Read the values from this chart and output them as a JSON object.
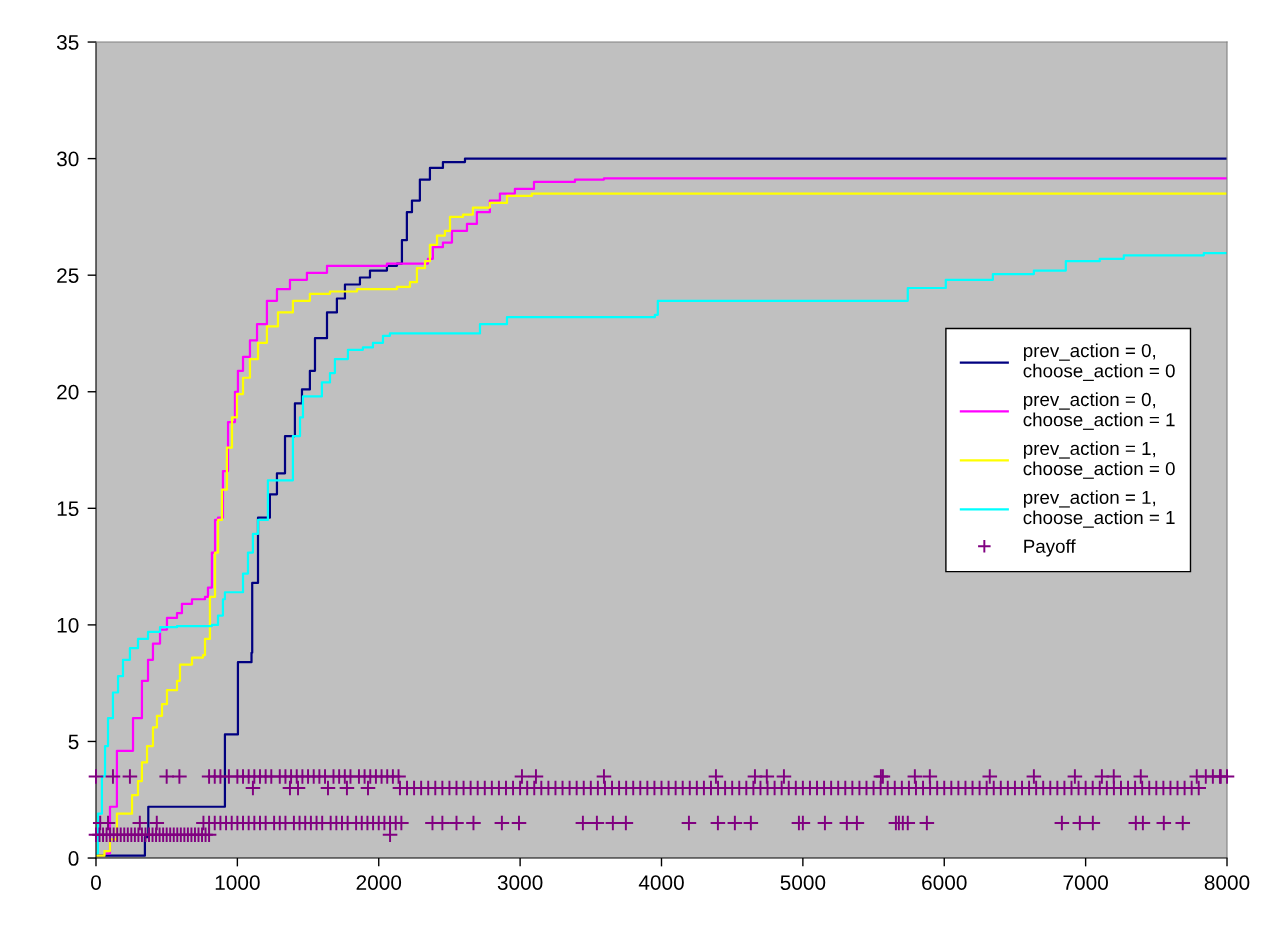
{
  "chart_data": {
    "type": "step",
    "xlim": [
      0,
      8000
    ],
    "ylim": [
      0,
      35
    ],
    "xticks": [
      0,
      1000,
      2000,
      3000,
      4000,
      5000,
      6000,
      7000,
      8000
    ],
    "yticks": [
      0,
      5,
      10,
      15,
      20,
      25,
      30,
      35
    ],
    "grid": false,
    "legend": "right",
    "marker": "none",
    "line_style": "solid",
    "series": [
      {
        "name": "prev_action = 0,\nchoose_action = 0",
        "color": "#000080",
        "x": [
          0,
          346,
          370,
          460,
          912,
          934,
          1004,
          1100,
          1105,
          1146,
          1230,
          1280,
          1337,
          1407,
          1457,
          1513,
          1549,
          1634,
          1704,
          1761,
          1867,
          1938,
          2058,
          2129,
          2164,
          2199,
          2235,
          2291,
          2362,
          2454,
          2610,
          8000
        ],
        "values": [
          0.1,
          0.9,
          2.2,
          2.2,
          5.3,
          5.3,
          8.4,
          8.8,
          11.8,
          14.6,
          15.6,
          16.5,
          18.1,
          19.5,
          20.1,
          20.9,
          22.3,
          23.4,
          24.0,
          24.6,
          24.9,
          25.2,
          25.4,
          25.5,
          26.5,
          27.7,
          28.2,
          29.1,
          29.6,
          29.85,
          30.0,
          30.0
        ]
      },
      {
        "name": "prev_action = 0,\nchoose_action = 1",
        "color": "#ff00ff",
        "x": [
          64,
          99,
          148,
          262,
          325,
          368,
          403,
          453,
          502,
          573,
          608,
          679,
          771,
          792,
          820,
          842,
          863,
          898,
          934,
          983,
          1004,
          1040,
          1089,
          1139,
          1209,
          1280,
          1372,
          1492,
          1634,
          1846,
          2058,
          2348,
          2383,
          2454,
          2518,
          2624,
          2694,
          2786,
          2857,
          2963,
          3098,
          3388,
          3593,
          8000
        ],
        "values": [
          0.2,
          2.2,
          4.6,
          6.0,
          7.6,
          8.5,
          9.2,
          9.8,
          10.3,
          10.5,
          10.9,
          11.1,
          11.2,
          11.6,
          13.1,
          14.5,
          14.6,
          16.6,
          18.7,
          20.0,
          20.9,
          21.5,
          22.2,
          22.9,
          23.9,
          24.4,
          24.8,
          25.1,
          25.4,
          25.4,
          25.5,
          25.7,
          26.2,
          26.4,
          26.9,
          27.2,
          27.7,
          28.2,
          28.5,
          28.7,
          29.0,
          29.1,
          29.15,
          29.15
        ]
      },
      {
        "name": "prev_action = 1,\nchoose_action = 0",
        "color": "#ffff00",
        "x": [
          0,
          60,
          99,
          148,
          255,
          297,
          325,
          361,
          403,
          431,
          467,
          502,
          573,
          594,
          679,
          757,
          771,
          806,
          842,
          863,
          891,
          926,
          962,
          997,
          1040,
          1089,
          1146,
          1209,
          1287,
          1393,
          1513,
          1655,
          1846,
          2129,
          2221,
          2270,
          2327,
          2362,
          2412,
          2468,
          2504,
          2596,
          2666,
          2786,
          2907,
          3083,
          8000
        ],
        "values": [
          0.1,
          0.3,
          0.8,
          1.9,
          2.7,
          3.3,
          4.1,
          4.8,
          5.6,
          6.1,
          6.6,
          7.2,
          7.6,
          8.3,
          8.6,
          8.7,
          9.4,
          11.2,
          13.1,
          14.5,
          15.8,
          17.6,
          18.9,
          19.9,
          20.6,
          21.4,
          22.1,
          22.8,
          23.4,
          23.9,
          24.2,
          24.3,
          24.4,
          24.5,
          24.7,
          25.3,
          25.6,
          26.3,
          26.7,
          26.9,
          27.5,
          27.6,
          27.9,
          28.1,
          28.4,
          28.5,
          28.5
        ]
      },
      {
        "name": "prev_action = 1,\nchoose_action = 1",
        "color": "#00ffff",
        "x": [
          0,
          14,
          42,
          64,
          85,
          120,
          156,
          191,
          240,
          297,
          368,
          453,
          573,
          820,
          863,
          898,
          912,
          1040,
          1075,
          1110,
          1146,
          1216,
          1393,
          1443,
          1464,
          1598,
          1655,
          1690,
          1782,
          1888,
          1959,
          2030,
          2079,
          2716,
          2907,
          3953,
          3974,
          5742,
          6011,
          6344,
          6634,
          6860,
          7100,
          7270,
          7836,
          8000
        ],
        "values": [
          0.2,
          1.9,
          3.5,
          4.8,
          6.0,
          7.1,
          7.8,
          8.5,
          9.0,
          9.4,
          9.7,
          9.9,
          9.95,
          10.0,
          10.4,
          11.1,
          11.4,
          12.2,
          13.1,
          13.9,
          14.5,
          16.2,
          18.1,
          18.9,
          19.8,
          20.4,
          20.8,
          21.4,
          21.8,
          21.9,
          22.1,
          22.4,
          22.5,
          22.9,
          23.2,
          23.3,
          23.9,
          24.45,
          24.8,
          25.05,
          25.2,
          25.6,
          25.7,
          25.85,
          25.95,
          25.95
        ]
      },
      {
        "name": "Payoff",
        "type": "scatter",
        "marker": "cross",
        "color": "#800080",
        "x": [
          0,
          25,
          50,
          75,
          100,
          125,
          150,
          175,
          200,
          225,
          250,
          275,
          300,
          325,
          350,
          375,
          400,
          425,
          450,
          475,
          500,
          525,
          550,
          575,
          600,
          625,
          650,
          675,
          700,
          725,
          750,
          775,
          800,
          2080,
          30,
          85,
          310,
          430,
          760,
          800,
          840,
          880,
          920,
          960,
          1000,
          1040,
          1080,
          1120,
          1160,
          1200,
          1260,
          1300,
          1340,
          1400,
          1440,
          1480,
          1520,
          1560,
          1600,
          1660,
          1700,
          1740,
          1780,
          1840,
          1880,
          1920,
          1960,
          2000,
          2040,
          2080,
          2120,
          2160,
          2380,
          2450,
          2550,
          2670,
          2871,
          2992,
          3444,
          3543,
          3656,
          3748,
          4194,
          4399,
          4519,
          4632,
          4972,
          5000,
          5156,
          5311,
          5382,
          5658,
          5679,
          5707,
          5742,
          5877,
          6832,
          6959,
          7051,
          7355,
          7405,
          7553,
          7687,
          1110,
          1372,
          1429,
          1641,
          1775,
          1924,
          2150,
          2200,
          2250,
          2300,
          2350,
          2400,
          2450,
          2500,
          2550,
          2600,
          2650,
          2700,
          2750,
          2800,
          2850,
          2900,
          2950,
          3000,
          3050,
          3100,
          3150,
          3200,
          3250,
          3300,
          3350,
          3400,
          3450,
          3500,
          3550,
          3600,
          3650,
          3700,
          3750,
          3800,
          3850,
          3900,
          3950,
          4000,
          4050,
          4100,
          4150,
          4200,
          4250,
          4300,
          4350,
          4400,
          4450,
          4500,
          4550,
          4600,
          4650,
          4700,
          4750,
          4800,
          4850,
          4900,
          4950,
          5000,
          5050,
          5100,
          5150,
          5200,
          5250,
          5300,
          5350,
          5400,
          5450,
          5500,
          5550,
          5600,
          5650,
          5700,
          5750,
          5800,
          5850,
          5900,
          5950,
          6000,
          6050,
          6100,
          6150,
          6200,
          6250,
          6300,
          6350,
          6400,
          6450,
          6500,
          6550,
          6600,
          6650,
          6700,
          6750,
          6800,
          6850,
          6900,
          6950,
          7000,
          7050,
          7100,
          7150,
          7200,
          7250,
          7300,
          7350,
          7400,
          7450,
          7500,
          7550,
          7600,
          7650,
          7700,
          7750,
          7800,
          7850,
          7900,
          7950,
          8000,
          0,
          120,
          240,
          500,
          590,
          800,
          840,
          880,
          940,
          1000,
          1040,
          1080,
          1120,
          1160,
          1200,
          1240,
          1300,
          1340,
          1380,
          1420,
          1460,
          1500,
          1540,
          1580,
          1620,
          1680,
          1720,
          1760,
          1800,
          1860,
          1900,
          1940,
          1980,
          2020,
          2060,
          2100,
          2140,
          3013,
          3112,
          3593,
          4385,
          4661,
          4745,
          4866,
          5552,
          5566,
          5792,
          5898,
          6322,
          6634,
          6924,
          7115,
          7199,
          7390,
          7786,
          7956
        ],
        "values": [
          1,
          1,
          1,
          1,
          1,
          1,
          1,
          1,
          1,
          1,
          1,
          1,
          1,
          1,
          1,
          1,
          1,
          1,
          1,
          1,
          1,
          1,
          1,
          1,
          1,
          1,
          1,
          1,
          1,
          1,
          1,
          1,
          1,
          1,
          1.5,
          1.5,
          1.5,
          1.5,
          1.5,
          1.5,
          1.5,
          1.5,
          1.5,
          1.5,
          1.5,
          1.5,
          1.5,
          1.5,
          1.5,
          1.5,
          1.5,
          1.5,
          1.5,
          1.5,
          1.5,
          1.5,
          1.5,
          1.5,
          1.5,
          1.5,
          1.5,
          1.5,
          1.5,
          1.5,
          1.5,
          1.5,
          1.5,
          1.5,
          1.5,
          1.5,
          1.5,
          1.5,
          1.5,
          1.5,
          1.5,
          1.5,
          1.5,
          1.5,
          1.5,
          1.5,
          1.5,
          1.5,
          1.5,
          1.5,
          1.5,
          1.5,
          1.5,
          1.5,
          1.5,
          1.5,
          1.5,
          1.5,
          1.5,
          1.5,
          1.5,
          1.5,
          1.5,
          1.5,
          1.5,
          1.5,
          1.5,
          1.5,
          1.5,
          3,
          3,
          3,
          3,
          3,
          3,
          3,
          3,
          3,
          3,
          3,
          3,
          3,
          3,
          3,
          3,
          3,
          3,
          3,
          3,
          3,
          3,
          3,
          3,
          3,
          3,
          3,
          3,
          3,
          3,
          3,
          3,
          3,
          3,
          3,
          3,
          3,
          3,
          3,
          3,
          3,
          3,
          3,
          3,
          3,
          3,
          3,
          3,
          3,
          3,
          3,
          3,
          3,
          3,
          3,
          3,
          3,
          3,
          3,
          3,
          3,
          3,
          3,
          3,
          3,
          3,
          3,
          3,
          3,
          3,
          3,
          3,
          3,
          3,
          3,
          3,
          3,
          3,
          3,
          3,
          3,
          3,
          3,
          3,
          3,
          3,
          3,
          3,
          3,
          3,
          3,
          3,
          3,
          3,
          3,
          3,
          3,
          3,
          3,
          3,
          3,
          3,
          3,
          3,
          3,
          3,
          3,
          3,
          3,
          3,
          3,
          3,
          3,
          3,
          3,
          3,
          3,
          3,
          3,
          3,
          3.5,
          3.5,
          3.5,
          3.5,
          3.5,
          3.5,
          3.5,
          3.5,
          3.5,
          3.5,
          3.5,
          3.5,
          3.5,
          3.5,
          3.5,
          3.5,
          3.5,
          3.5,
          3.5,
          3.5,
          3.5,
          3.5,
          3.5,
          3.5,
          3.5,
          3.5,
          3.5,
          3.5,
          3.5,
          3.5,
          3.5,
          3.5,
          3.5,
          3.5,
          3.5,
          3.5,
          3.5,
          3.5,
          3.5,
          3.5,
          3.5,
          3.5,
          3.5,
          3.5,
          3.5,
          3.5,
          3.5,
          3.5,
          3.5,
          3.5,
          3.5,
          3.5,
          3.5,
          3.5,
          3.5,
          3.5,
          3.5,
          3.5,
          3.5,
          3.5
        ]
      }
    ]
  }
}
